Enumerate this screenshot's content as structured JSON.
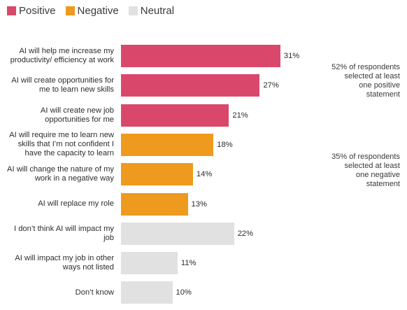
{
  "chart_data": {
    "type": "bar",
    "orientation": "horizontal",
    "legend": {
      "placement": "top-left",
      "entries": [
        {
          "name": "Positive",
          "color": "#d9486a"
        },
        {
          "name": "Negative",
          "color": "#ee9a1e"
        },
        {
          "name": "Neutral",
          "color": "#e1e1e1"
        }
      ]
    },
    "categories": [
      "AI will help me increase my productivity/ efficiency at work",
      "AI will create opportunities for me to learn new skills",
      "AI will create new job opportunities for me",
      "AI will require me to learn new skills that I’m not confident I have the capacity to learn",
      "AI will change the nature of my work in a negative way",
      "AI will replace my role",
      "I don’t think AI will impact my job",
      "AI will impact my job in other ways not listed",
      "Don’t know"
    ],
    "values": [
      31,
      27,
      21,
      18,
      14,
      13,
      22,
      11,
      10
    ],
    "value_labels": [
      "31%",
      "27%",
      "21%",
      "18%",
      "14%",
      "13%",
      "22%",
      "11%",
      "10%"
    ],
    "groups": [
      "Positive",
      "Positive",
      "Positive",
      "Negative",
      "Negative",
      "Negative",
      "Neutral",
      "Neutral",
      "Neutral"
    ],
    "xlim": [
      0,
      35
    ],
    "grid": false,
    "annotations": [
      {
        "text": "52% of respondents selected at least one positive statement"
      },
      {
        "text": "35% of respondents selected at least one negative statement"
      }
    ]
  }
}
